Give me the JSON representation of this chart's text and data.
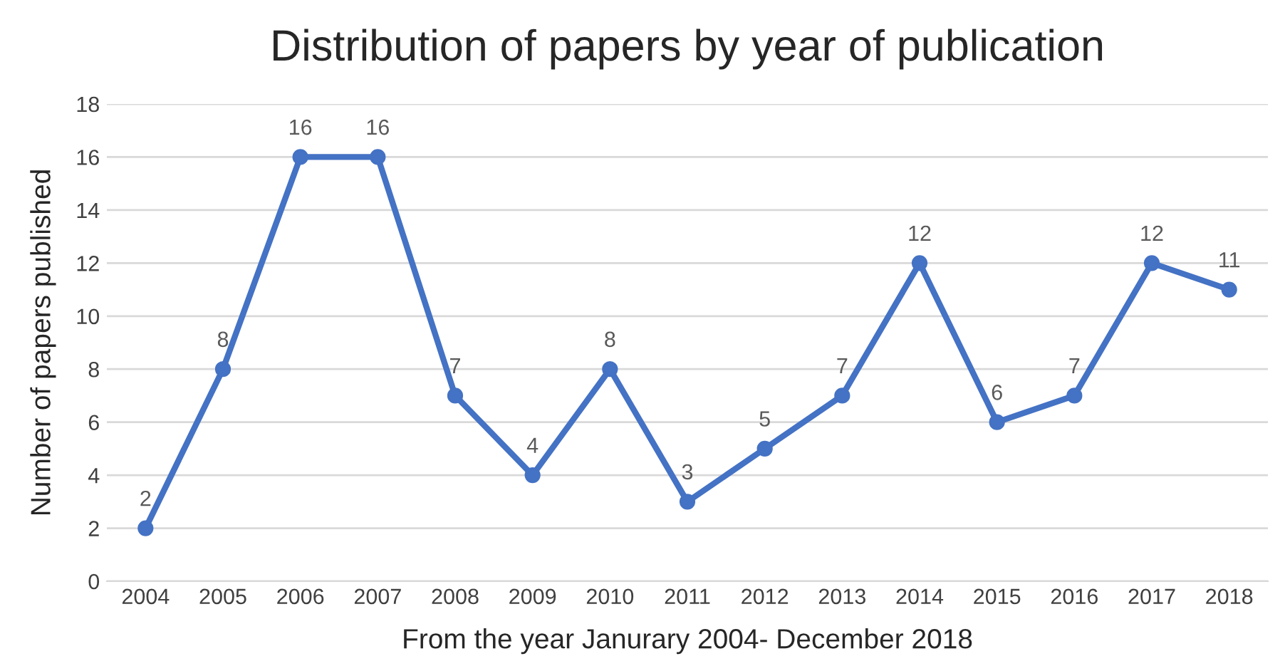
{
  "chart_data": {
    "type": "line",
    "title": "Distribution of papers by year of publication",
    "xlabel": "From the year Janurary 2004- December 2018",
    "ylabel": "Number of papers published",
    "categories": [
      "2004",
      "2005",
      "2006",
      "2007",
      "2008",
      "2009",
      "2010",
      "2011",
      "2012",
      "2013",
      "2014",
      "2015",
      "2016",
      "2017",
      "2018"
    ],
    "values": [
      2,
      8,
      16,
      16,
      7,
      4,
      8,
      3,
      5,
      7,
      12,
      6,
      7,
      12,
      11
    ],
    "color": "#4472c4",
    "marker": "circle",
    "line_style": "solid",
    "ylim": [
      0,
      18
    ],
    "yticks": [
      0,
      2,
      4,
      6,
      8,
      10,
      12,
      14,
      16,
      18
    ],
    "grid": "y",
    "data_labels": true
  }
}
